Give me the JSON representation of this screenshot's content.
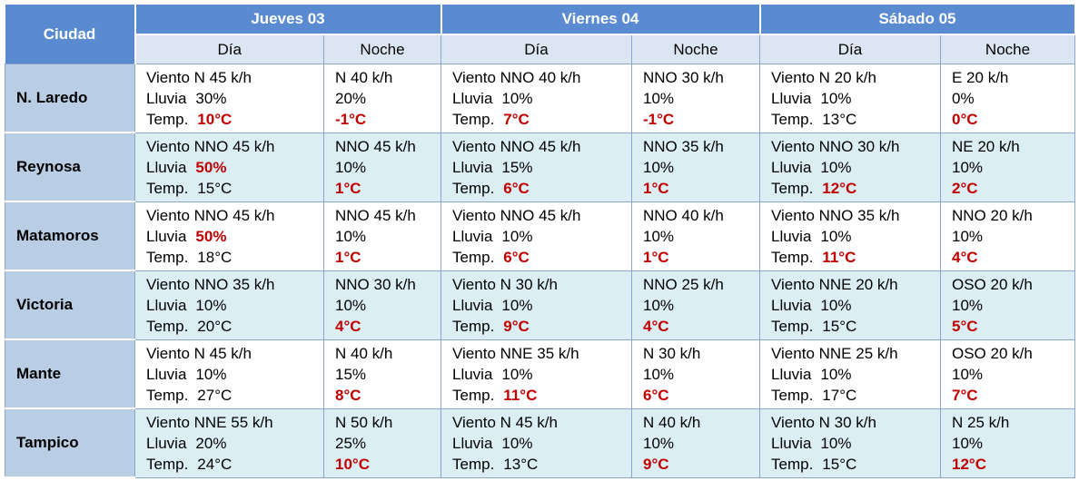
{
  "table": {
    "header": {
      "city": "Ciudad",
      "days": [
        "Jueves 03",
        "Viernes 04",
        "Sábado 05"
      ],
      "periods": [
        "Día",
        "Noche",
        "Día",
        "Noche",
        "Día",
        "Noche"
      ]
    },
    "rows": [
      {
        "city": "N. Laredo",
        "cells": [
          {
            "wind": "Viento N 45 k/h",
            "rain": {
              "label": "Lluvia",
              "value": "30%",
              "alert": false
            },
            "temp": {
              "label": "Temp.",
              "value": "10°C",
              "alert": true
            }
          },
          {
            "wind": "N 40 k/h",
            "rain": {
              "value": "20%",
              "alert": false
            },
            "temp": {
              "value": "-1°C",
              "alert": true
            }
          },
          {
            "wind": "Viento NNO 40 k/h",
            "rain": {
              "label": "Lluvia",
              "value": "10%",
              "alert": false
            },
            "temp": {
              "label": "Temp.",
              "value": "7°C",
              "alert": true
            }
          },
          {
            "wind": "NNO 30 k/h",
            "rain": {
              "value": "10%",
              "alert": false
            },
            "temp": {
              "value": "-1°C",
              "alert": true
            }
          },
          {
            "wind": "Viento N 20 k/h",
            "rain": {
              "label": "Lluvia",
              "value": "10%",
              "alert": false
            },
            "temp": {
              "label": "Temp.",
              "value": "13°C",
              "alert": false
            }
          },
          {
            "wind": "E 20 k/h",
            "rain": {
              "value": "0%",
              "alert": false
            },
            "temp": {
              "value": "0°C",
              "alert": true
            }
          }
        ]
      },
      {
        "city": "Reynosa",
        "cells": [
          {
            "wind": "Viento NNO 45 k/h",
            "rain": {
              "label": "Lluvia",
              "value": "50%",
              "alert": true
            },
            "temp": {
              "label": "Temp.",
              "value": "15°C",
              "alert": false
            }
          },
          {
            "wind": "NNO 45 k/h",
            "rain": {
              "value": "10%",
              "alert": false
            },
            "temp": {
              "value": "1°C",
              "alert": true
            }
          },
          {
            "wind": "Viento NNO 45 k/h",
            "rain": {
              "label": "Lluvia",
              "value": "15%",
              "alert": false
            },
            "temp": {
              "label": "Temp.",
              "value": "6°C",
              "alert": true
            }
          },
          {
            "wind": "NNO 35 k/h",
            "rain": {
              "value": "10%",
              "alert": false
            },
            "temp": {
              "value": "1°C",
              "alert": true
            }
          },
          {
            "wind": "Viento NNO 30 k/h",
            "rain": {
              "label": "Lluvia",
              "value": "10%",
              "alert": false
            },
            "temp": {
              "label": "Temp.",
              "value": "12°C",
              "alert": true
            }
          },
          {
            "wind": "NE 20 k/h",
            "rain": {
              "value": "10%",
              "alert": false
            },
            "temp": {
              "value": "2°C",
              "alert": true
            }
          }
        ]
      },
      {
        "city": "Matamoros",
        "cells": [
          {
            "wind": "Viento NNO 45 k/h",
            "rain": {
              "label": "Lluvia",
              "value": "50%",
              "alert": true
            },
            "temp": {
              "label": "Temp.",
              "value": "18°C",
              "alert": false
            }
          },
          {
            "wind": "NNO 45 k/h",
            "rain": {
              "value": "10%",
              "alert": false
            },
            "temp": {
              "value": "1°C",
              "alert": true
            }
          },
          {
            "wind": "Viento NNO 45 k/h",
            "rain": {
              "label": "Lluvia",
              "value": "10%",
              "alert": false
            },
            "temp": {
              "label": "Temp.",
              "value": "6°C",
              "alert": true
            }
          },
          {
            "wind": "NNO 40 k/h",
            "rain": {
              "value": "10%",
              "alert": false
            },
            "temp": {
              "value": "1°C",
              "alert": true
            }
          },
          {
            "wind": "Viento NNO 35 k/h",
            "rain": {
              "label": "Lluvia",
              "value": "10%",
              "alert": false
            },
            "temp": {
              "label": "Temp.",
              "value": "11°C",
              "alert": true
            }
          },
          {
            "wind": "NNO 20 k/h",
            "rain": {
              "value": "10%",
              "alert": false
            },
            "temp": {
              "value": "4°C",
              "alert": true
            }
          }
        ]
      },
      {
        "city": "Victoria",
        "cells": [
          {
            "wind": "Viento NNO 35 k/h",
            "rain": {
              "label": "Lluvia",
              "value": "10%",
              "alert": false
            },
            "temp": {
              "label": "Temp.",
              "value": "20°C",
              "alert": false
            }
          },
          {
            "wind": "NNO 30 k/h",
            "rain": {
              "value": "10%",
              "alert": false
            },
            "temp": {
              "value": "4°C",
              "alert": true
            }
          },
          {
            "wind": "Viento N 30 k/h",
            "rain": {
              "label": "Lluvia",
              "value": "10%",
              "alert": false
            },
            "temp": {
              "label": "Temp.",
              "value": "9°C",
              "alert": true
            }
          },
          {
            "wind": "NNO 25 k/h",
            "rain": {
              "value": "10%",
              "alert": false
            },
            "temp": {
              "value": "4°C",
              "alert": true
            }
          },
          {
            "wind": "Viento NNE 20 k/h",
            "rain": {
              "label": "Lluvia",
              "value": "10%",
              "alert": false
            },
            "temp": {
              "label": "Temp.",
              "value": "15°C",
              "alert": false
            }
          },
          {
            "wind": "OSO 20 k/h",
            "rain": {
              "value": "10%",
              "alert": false
            },
            "temp": {
              "value": "5°C",
              "alert": true
            }
          }
        ]
      },
      {
        "city": "Mante",
        "cells": [
          {
            "wind": "Viento N 45 k/h",
            "rain": {
              "label": "Lluvia",
              "value": "10%",
              "alert": false
            },
            "temp": {
              "label": "Temp.",
              "value": "27°C",
              "alert": false
            }
          },
          {
            "wind": "N 40 k/h",
            "rain": {
              "value": "15%",
              "alert": false
            },
            "temp": {
              "value": "8°C",
              "alert": true
            }
          },
          {
            "wind": "Viento NNE 35 k/h",
            "rain": {
              "label": "Lluvia",
              "value": "10%",
              "alert": false
            },
            "temp": {
              "label": "Temp.",
              "value": "11°C",
              "alert": true
            }
          },
          {
            "wind": "N 30 k/h",
            "rain": {
              "value": "10%",
              "alert": false
            },
            "temp": {
              "value": "6°C",
              "alert": true
            }
          },
          {
            "wind": "Viento NNE 25 k/h",
            "rain": {
              "label": "Lluvia",
              "value": "10%",
              "alert": false
            },
            "temp": {
              "label": "Temp.",
              "value": "17°C",
              "alert": false
            }
          },
          {
            "wind": "OSO 20 k/h",
            "rain": {
              "value": "10%",
              "alert": false
            },
            "temp": {
              "value": "7°C",
              "alert": true
            }
          }
        ]
      },
      {
        "city": "Tampico",
        "cells": [
          {
            "wind": "Viento NNE 55 k/h",
            "rain": {
              "label": "Lluvia",
              "value": "20%",
              "alert": false
            },
            "temp": {
              "label": "Temp.",
              "value": "24°C",
              "alert": false
            }
          },
          {
            "wind": "N 50 k/h",
            "rain": {
              "value": "25%",
              "alert": false
            },
            "temp": {
              "value": "10°C",
              "alert": true
            }
          },
          {
            "wind": "Viento N 45 k/h",
            "rain": {
              "label": "Lluvia",
              "value": "10%",
              "alert": false
            },
            "temp": {
              "label": "Temp.",
              "value": "13°C",
              "alert": false
            }
          },
          {
            "wind": "N 40 k/h",
            "rain": {
              "value": "10%",
              "alert": false
            },
            "temp": {
              "value": "9°C",
              "alert": true
            }
          },
          {
            "wind": "Viento N 30 k/h",
            "rain": {
              "label": "Lluvia",
              "value": "10%",
              "alert": false
            },
            "temp": {
              "label": "Temp.",
              "value": "15°C",
              "alert": false
            }
          },
          {
            "wind": "N 25 k/h",
            "rain": {
              "value": "10%",
              "alert": false
            },
            "temp": {
              "value": "12°C",
              "alert": true
            }
          }
        ]
      }
    ]
  }
}
